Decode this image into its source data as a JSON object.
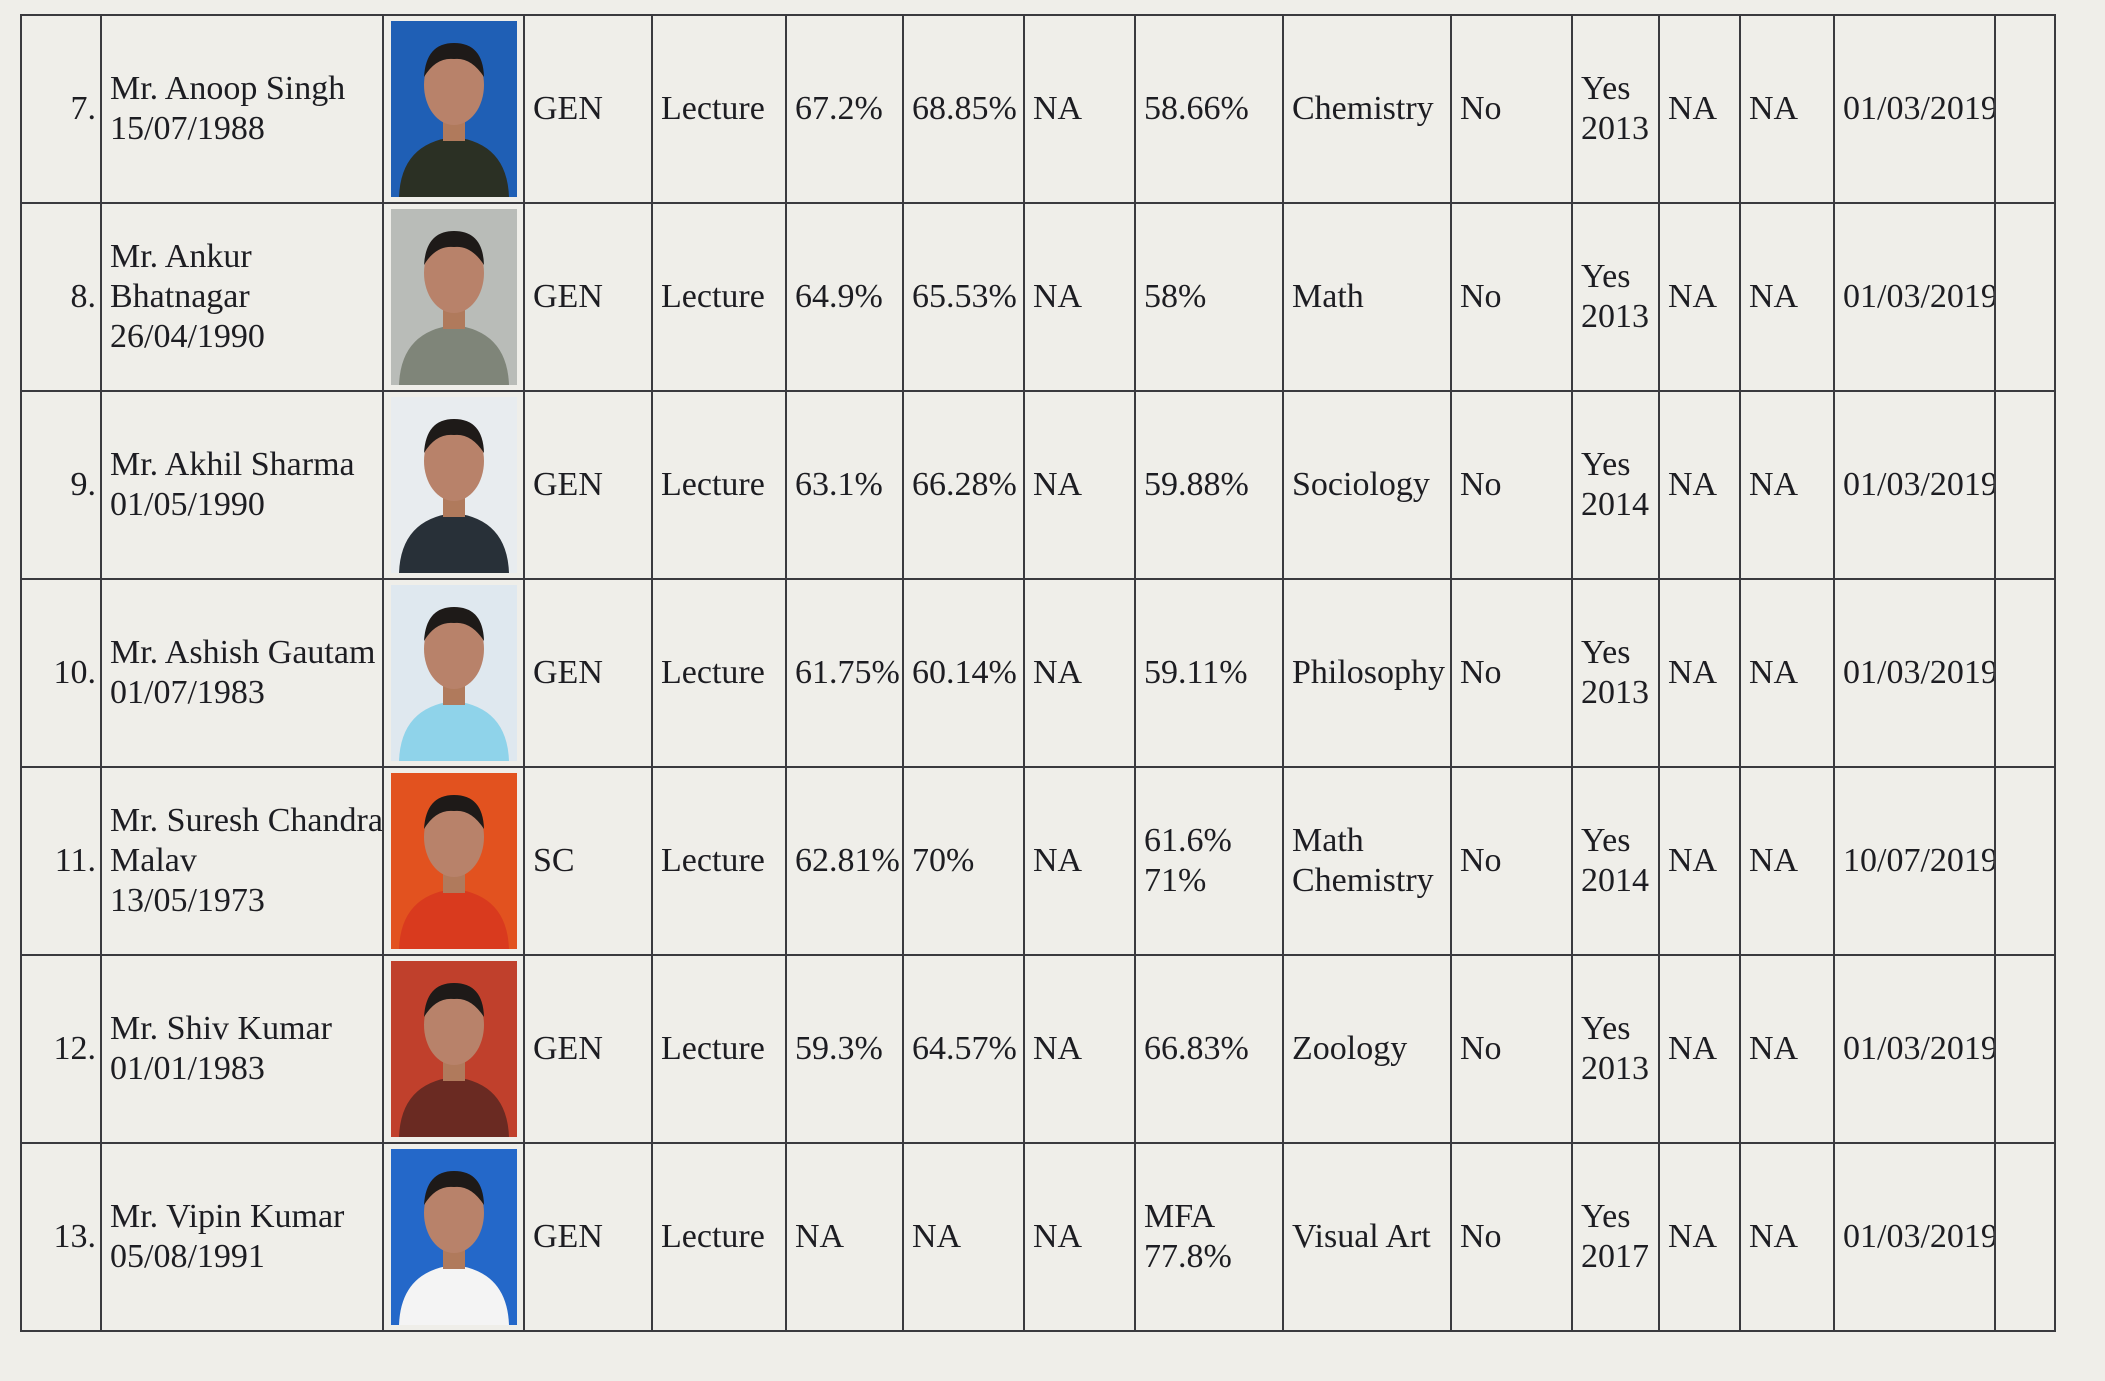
{
  "table": {
    "rows": [
      [
        "7.",
        [
          "Mr. Anoop Singh",
          "15/07/1988"
        ],
        "GEN",
        "Lecture",
        "67.2%",
        "68.85%",
        "NA",
        [
          "58.66%"
        ],
        [
          "Chemistry"
        ],
        "No",
        [
          "Yes",
          "2013"
        ],
        "NA",
        "NA",
        "01/03/2019"
      ],
      [
        "8.",
        [
          "Mr. Ankur",
          "Bhatnagar",
          "26/04/1990"
        ],
        "GEN",
        "Lecture",
        "64.9%",
        "65.53%",
        "NA",
        [
          "58%"
        ],
        [
          "Math"
        ],
        "No",
        [
          "Yes",
          "2013"
        ],
        "NA",
        "NA",
        "01/03/2019"
      ],
      [
        "9.",
        [
          "Mr. Akhil Sharma",
          "01/05/1990"
        ],
        "GEN",
        "Lecture",
        "63.1%",
        "66.28%",
        "NA",
        [
          "59.88%"
        ],
        [
          "Sociology"
        ],
        "No",
        [
          "Yes",
          "2014"
        ],
        "NA",
        "NA",
        "01/03/2019"
      ],
      [
        "10.",
        [
          "Mr. Ashish Gautam",
          "01/07/1983"
        ],
        "GEN",
        "Lecture",
        "61.75%",
        "60.14%",
        "NA",
        [
          "59.11%"
        ],
        [
          "Philosophy"
        ],
        "No",
        [
          "Yes",
          "2013"
        ],
        "NA",
        "NA",
        "01/03/2019"
      ],
      [
        "11.",
        [
          "Mr. Suresh Chandra",
          "Malav",
          "13/05/1973"
        ],
        "SC",
        "Lecture",
        "62.81%",
        "70%",
        "NA",
        [
          "61.6%",
          "71%"
        ],
        [
          "Math",
          "Chemistry"
        ],
        "No",
        [
          "Yes",
          "2014"
        ],
        "NA",
        "NA",
        "10/07/2019"
      ],
      [
        "12.",
        [
          "Mr. Shiv Kumar",
          "01/01/1983"
        ],
        "GEN",
        "Lecture",
        "59.3%",
        "64.57%",
        "NA",
        [
          "66.83%"
        ],
        [
          "Zoology"
        ],
        "No",
        [
          "Yes",
          "2013"
        ],
        "NA",
        "NA",
        "01/03/2019"
      ],
      [
        "13.",
        [
          "Mr. Vipin Kumar",
          "05/08/1991"
        ],
        "GEN",
        "Lecture",
        "NA",
        "NA",
        "NA",
        [
          "MFA",
          "77.8%"
        ],
        [
          "Visual Art"
        ],
        "No",
        [
          "Yes",
          "2017"
        ],
        "NA",
        "NA",
        "01/03/2019"
      ]
    ]
  }
}
